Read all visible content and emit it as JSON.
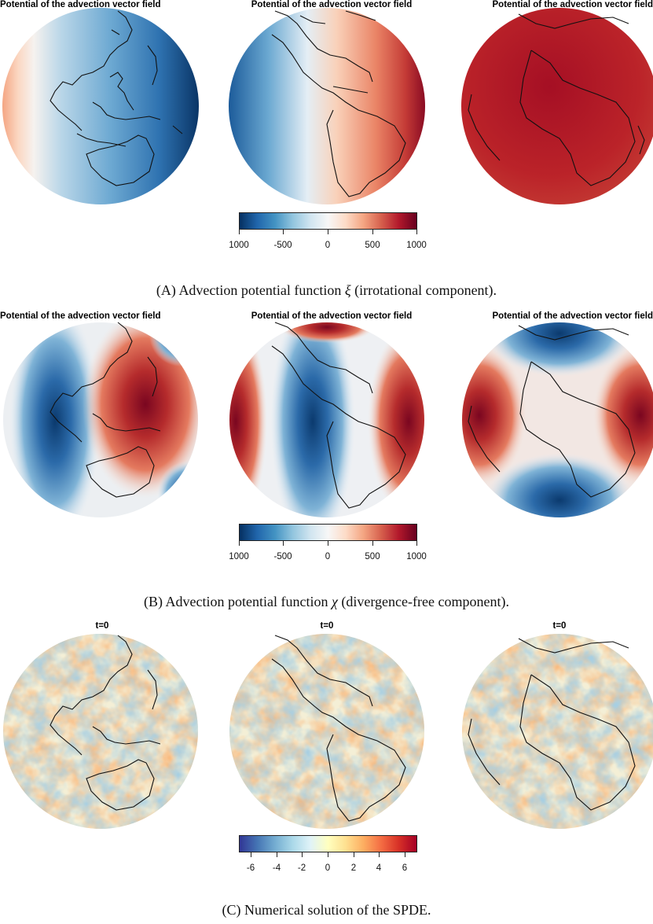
{
  "panels": [
    {
      "id": "A",
      "globe_titles": [
        "Potential of the advection vector field",
        "Potential of the advection vector field",
        "Potential of the advection vector field"
      ],
      "colorbar": {
        "ticks": [
          "1000",
          "-500",
          "0",
          "500",
          "1000"
        ],
        "palette": [
          "#053061",
          "#2166ac",
          "#4393c3",
          "#92c5de",
          "#d1e5f0",
          "#f7f7f7",
          "#fddbc7",
          "#f4a582",
          "#d6604d",
          "#b2182b",
          "#67001f"
        ]
      },
      "caption": {
        "tag": "(A)",
        "before": "Advection potential function",
        "symbol": "ξ",
        "after": "(irrotational component)."
      }
    },
    {
      "id": "B",
      "globe_titles": [
        "Potential of the advection vector field",
        "Potential of the advection vector field",
        "Potential of the advection vector field"
      ],
      "colorbar": {
        "ticks": [
          "1000",
          "-500",
          "0",
          "500",
          "1000"
        ],
        "palette": [
          "#053061",
          "#2166ac",
          "#4393c3",
          "#92c5de",
          "#d1e5f0",
          "#f7f7f7",
          "#fddbc7",
          "#f4a582",
          "#d6604d",
          "#b2182b",
          "#67001f"
        ]
      },
      "caption": {
        "tag": "(B)",
        "before": "Advection potential function",
        "symbol": "χ",
        "after": "(divergence-free component)."
      }
    },
    {
      "id": "C",
      "globe_titles": [
        "t=0",
        "t=0",
        "t=0"
      ],
      "colorbar": {
        "ticks": [
          "-6",
          "-4",
          "-2",
          "0",
          "2",
          "4",
          "6"
        ],
        "palette": [
          "#313695",
          "#4575b4",
          "#74add1",
          "#abd9e9",
          "#e0f3f8",
          "#ffffbf",
          "#fee090",
          "#fdae61",
          "#f46d43",
          "#d73027",
          "#a50026"
        ]
      },
      "caption": {
        "tag": "(C)",
        "before": "Numerical solution of the SPDE.",
        "symbol": "",
        "after": ""
      }
    }
  ]
}
